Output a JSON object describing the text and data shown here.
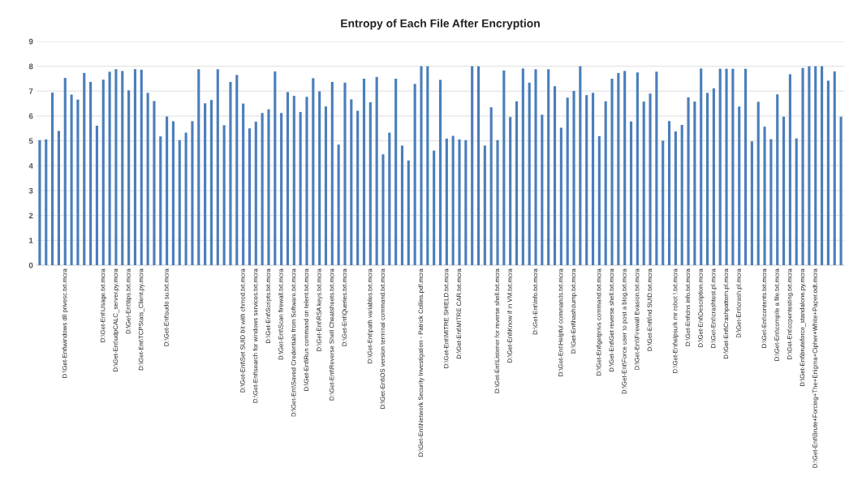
{
  "chart_data": {
    "type": "bar",
    "title": "Entropy of Each File After Encryption",
    "categories": [
      null,
      null,
      null,
      null,
      "D:\\Get-Ent\\windows dll privesc.txt.mcra",
      null,
      null,
      null,
      null,
      null,
      "D:\\Get-Ent\\Usage.txt.mcra",
      null,
      "D:\\Get-Ent\\udpCALC_server.py.mcra",
      null,
      "D:\\Get-Ent\\tips.txt.mcra",
      null,
      "D:\\Get-Ent\\TCPStats_Client.py.mcra",
      null,
      null,
      null,
      "D:\\Get-Ent\\sudo su.txt.mcra",
      null,
      null,
      null,
      null,
      null,
      null,
      null,
      null,
      null,
      null,
      null,
      "D:\\Get-Ent\\Set SUID bit with chmod.txt.mcra",
      null,
      "D:\\Get-Ent\\search for windows services.txt.mcra",
      null,
      "D:\\Get-Ent\\Scripts.txt.mcra",
      null,
      "D:\\Get-Ent\\Scan firewall.txt.mcra",
      null,
      "D:\\Get-Ent\\Saved Credentials from Software.txt.mcra",
      null,
      "D:\\Get-Ent\\Run command on telent.txt.mcra",
      null,
      "D:\\Get-Ent\\RSA keys.txt.mcra",
      null,
      "D:\\Get-Ent\\Reverse Shell Cheatsheets.txt.mcra",
      null,
      "D:\\Get-Ent\\Queries.txt.mcra",
      null,
      null,
      null,
      "D:\\Get-Ent\\path variables.txt.mcra",
      null,
      "D:\\Get-Ent\\OS version terminal command.txt.mcra",
      null,
      null,
      null,
      null,
      null,
      "D:\\Get-Ent\\Network Security Investigation - Patrick Collins.pdf.mcra",
      null,
      null,
      null,
      "D:\\Get-Ent\\MITRE SHIELD.txt.mcra",
      null,
      "D:\\Get-Ent\\MITRE CAR.txt.mcra",
      null,
      null,
      null,
      null,
      null,
      "D:\\Get-Ent\\Listener for reverse shell.txt.mcra",
      null,
      "D:\\Get-Ent\\Know if in VM.txt.mcra",
      null,
      null,
      null,
      "D:\\Get-Ent\\Info.txt.mcra",
      null,
      null,
      null,
      "D:\\Get-Ent\\Helpful commands.txt.mcra",
      null,
      "D:\\Get-Ent\\hashdump.txt.mcra",
      null,
      null,
      null,
      "D:\\Get-Ent\\getprivs command.txt.mcra",
      null,
      "D:\\Get-Ent\\Get reverse shell.txt.mcra",
      null,
      "D:\\Get-Ent\\Force user to post a blog.txt.mcra",
      null,
      "D:\\Get-Ent\\Firewall Evasion.txt.mcra",
      null,
      "D:\\Get-Ent\\find SUID.txt.mcra",
      null,
      null,
      null,
      "D:\\Get-Ent\\elpsurk mr robot !.txt.mcra",
      null,
      "D:\\Get-Ent\\dns info.txt.mcra",
      null,
      "D:\\Get-Ent\\Description.mcra",
      null,
      "D:\\Get-Ent\\crashtest.pl.mcra",
      null,
      "D:\\Get-Ent\\Crashpattern.pl.mcra",
      null,
      "D:\\Get-Ent\\crash.pl.mcra",
      null,
      null,
      null,
      "D:\\Get-Ent\\contents.txt.mcra",
      null,
      "D:\\Get-Ent\\compile a file.txt.mcra",
      null,
      "D:\\Get-Ent\\ccpentesting.txt.mcra",
      null,
      "D:\\Get-Ent\\bruteforce_standalone.py.mcra",
      null,
      "D:\\Get-Ent\\Brute+Forcing+The+Enigma+Cipher+White+Paper.odt.mcra",
      null,
      null,
      null,
      null
    ],
    "values": [
      5.03,
      5.06,
      6.94,
      5.4,
      7.53,
      6.86,
      6.66,
      7.73,
      7.37,
      5.61,
      7.46,
      7.78,
      7.88,
      7.81,
      7.03,
      7.88,
      7.86,
      6.93,
      6.6,
      5.18,
      5.98,
      5.79,
      5.03,
      5.33,
      5.79,
      7.88,
      6.51,
      6.64,
      7.88,
      5.63,
      7.37,
      7.65,
      6.5,
      5.5,
      5.77,
      6.12,
      6.27,
      7.79,
      6.12,
      6.96,
      6.81,
      6.16,
      6.77,
      7.52,
      6.99,
      6.38,
      7.37,
      4.85,
      7.34,
      6.67,
      6.21,
      7.5,
      6.55,
      7.57,
      4.46,
      5.33,
      7.5,
      4.81,
      4.21,
      7.29,
      8.0,
      8.0,
      4.61,
      7.45,
      5.09,
      5.2,
      5.06,
      5.03,
      8.0,
      8.0,
      4.81,
      6.35,
      5.03,
      7.83,
      5.96,
      6.59,
      7.91,
      7.34,
      7.88,
      6.05,
      7.88,
      7.2,
      5.53,
      6.74,
      7.01,
      8.0,
      6.84,
      6.93,
      5.19,
      6.59,
      7.5,
      7.73,
      7.81,
      5.78,
      7.75,
      6.58,
      6.9,
      7.78,
      5.01,
      5.8,
      5.38,
      5.64,
      6.75,
      6.58,
      7.91,
      6.93,
      7.11,
      7.9,
      7.9,
      7.9,
      6.38,
      7.9,
      4.98,
      6.57,
      5.57,
      5.07,
      6.87,
      5.97,
      7.68,
      5.1,
      7.93,
      8.0,
      8.0,
      8.0,
      7.42,
      7.79,
      5.97
    ],
    "color": "#4a7ebb",
    "ylim": [
      0,
      9
    ],
    "yticks": [
      0,
      1,
      2,
      3,
      4,
      5,
      6,
      7,
      8,
      9
    ],
    "grid": "y"
  }
}
